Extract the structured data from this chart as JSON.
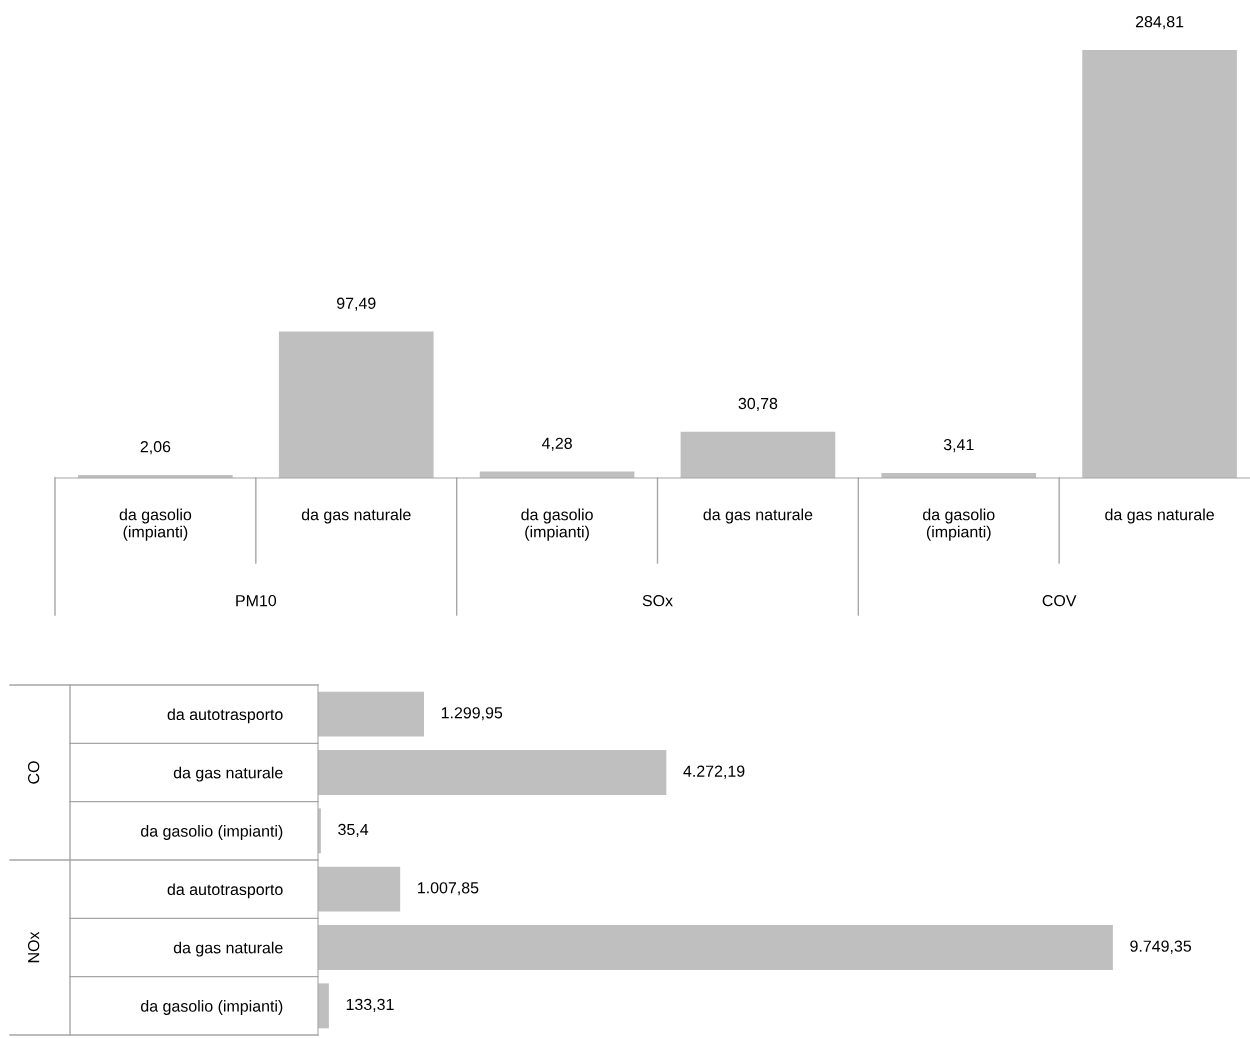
{
  "chart_data": [
    {
      "type": "bar",
      "categories": [
        "da gasolio (impianti)",
        "da gas naturale",
        "da gasolio (impianti)",
        "da gas naturale",
        "da gasolio (impianti)",
        "da gas naturale"
      ],
      "values": [
        2.06,
        97.49,
        4.28,
        30.78,
        3.41,
        284.81
      ],
      "value_labels": [
        "2,06",
        "97,49",
        "4,28",
        "30,78",
        "3,41",
        "284,81"
      ],
      "color": "#bfbfbf",
      "grid": false,
      "legend": false,
      "annotations": [
        "PM10",
        "SOx",
        "COV"
      ]
    },
    {
      "type": "bar",
      "orientation": "horizontal",
      "categories": [
        "da autotrasporto",
        "da gas naturale",
        "da gasolio (impianti)",
        "da autotrasporto",
        "da gas naturale",
        "da gasolio (impianti)"
      ],
      "values": [
        1299.95,
        4272.19,
        35.4,
        1007.85,
        9749.35,
        133.31
      ],
      "value_labels": [
        "1.299,95",
        "4.272,19",
        "35,4",
        "1.007,85",
        "9.749,35",
        "133,31"
      ],
      "color": "#bfbfbf",
      "grid": false,
      "legend": false,
      "annotations": [
        "CO",
        "NOx"
      ]
    }
  ]
}
